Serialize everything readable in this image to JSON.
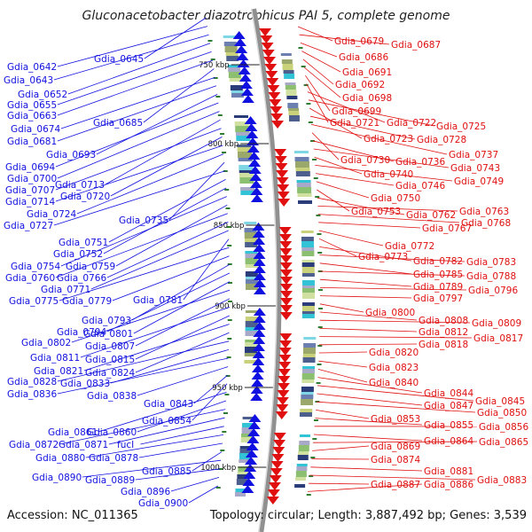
{
  "title": "Gluconacetobacter diazotrophicus PAI 5, complete genome",
  "accession_label": "Accession: NC_011365",
  "summary_label": "Topology: circular; Length: 3,887,492 bp; Genes: 3,539",
  "colors": {
    "forward": "#1010e0",
    "reverse": "#e01010",
    "backbone": "#909090",
    "tick_mark": "#2e7d32"
  },
  "ticks": [
    {
      "label": "750 kbp"
    },
    {
      "label": "800 kbp"
    },
    {
      "label": "850 kbp"
    },
    {
      "label": "900 kbp"
    },
    {
      "label": "950 kbp"
    },
    {
      "label": "1000 kbp"
    }
  ],
  "left_labels": [
    "Gdia_0645",
    "Gdia_0642",
    "Gdia_0643",
    "Gdia_0652",
    "Gdia_0655",
    "Gdia_0663",
    "Gdia_0685",
    "Gdia_0674",
    "Gdia_0681",
    "Gdia_0693",
    "Gdia_0694",
    "Gdia_0700",
    "Gdia_0713",
    "Gdia_0707",
    "Gdia_0720",
    "Gdia_0714",
    "Gdia_0724",
    "Gdia_0735",
    "Gdia_0727",
    "Gdia_0751",
    "Gdia_0752",
    "Gdia_0754",
    "Gdia_0759",
    "Gdia_0760",
    "Gdia_0766",
    "Gdia_0771",
    "Gdia_0781",
    "Gdia_0775",
    "Gdia_0779",
    "Gdia_0793",
    "Gdia_0794",
    "Gdia_0801",
    "Gdia_0802",
    "Gdia_0807",
    "Gdia_0811",
    "Gdia_0815",
    "Gdia_0821",
    "Gdia_0824",
    "Gdia_0828",
    "Gdia_0833",
    "Gdia_0836",
    "Gdia_0838",
    "Gdia_0843",
    "Gdia_0854",
    "Gdia_0861",
    "Gdia_0860",
    "Gdia_0872",
    "Gdia_0871",
    "fucI",
    "Gdia_0880",
    "Gdia_0878",
    "Gdia_0885",
    "Gdia_0890",
    "Gdia_0889",
    "Gdia_0896",
    "Gdia_0900"
  ],
  "right_labels": [
    "Gdia_0679",
    "Gdia_0687",
    "Gdia_0686",
    "Gdia_0691",
    "Gdia_0692",
    "Gdia_0698",
    "Gdia_0699",
    "Gdia_0721",
    "Gdia_0722",
    "Gdia_0725",
    "Gdia_0723",
    "Gdia_0728",
    "Gdia_0737",
    "Gdia_0730",
    "Gdia_0736",
    "Gdia_0743",
    "Gdia_0740",
    "Gdia_0749",
    "Gdia_0746",
    "Gdia_0750",
    "Gdia_0753",
    "Gdia_0762",
    "Gdia_0763",
    "Gdia_0768",
    "Gdia_0767",
    "Gdia_0772",
    "Gdia_0773",
    "Gdia_0782",
    "Gdia_0783",
    "Gdia_0785",
    "Gdia_0788",
    "Gdia_0789",
    "Gdia_0796",
    "Gdia_0797",
    "Gdia_0800",
    "Gdia_0808",
    "Gdia_0809",
    "Gdia_0812",
    "Gdia_0817",
    "Gdia_0818",
    "Gdia_0820",
    "Gdia_0823",
    "Gdia_0840",
    "Gdia_0844",
    "Gdia_0845",
    "Gdia_0847",
    "Gdia_0850",
    "Gdia_0853",
    "Gdia_0855",
    "Gdia_0856",
    "Gdia_0864",
    "Gdia_0865",
    "Gdia_0869",
    "Gdia_0874",
    "Gdia_0881",
    "Gdia_0883",
    "Gdia_0887",
    "Gdia_0886"
  ]
}
